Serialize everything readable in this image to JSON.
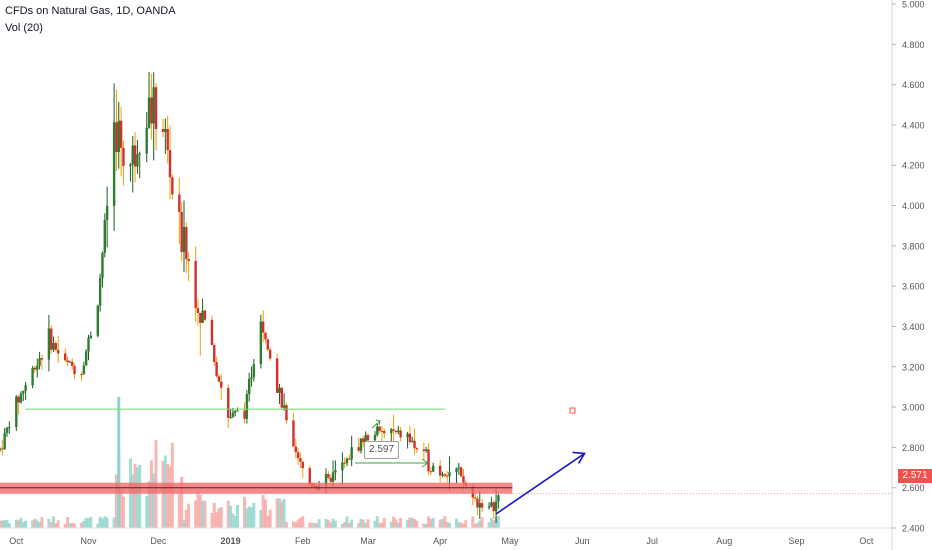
{
  "title": "CFDs on Natural Gas, 1D, OANDA",
  "volume_label": "Vol (20)",
  "current_price_label": "2.571",
  "annotation_label": "2.597",
  "colors": {
    "up": "#26a69a",
    "down": "#ef5350",
    "wick_up": "#1b5e20",
    "wick_down": "#f0a000",
    "support_zone": "#f06b6b",
    "resistance_line": "#66dd66",
    "arrow": "#1a1acc",
    "axis_text": "#555555"
  },
  "chart_data": {
    "type": "candlestick",
    "symbol": "CFDs on Natural Gas",
    "interval": "1D",
    "source": "OANDA",
    "ylim": [
      2.3,
      5.0
    ],
    "y_ticks": [
      "5.000",
      "4.800",
      "4.600",
      "4.400",
      "4.200",
      "4.000",
      "3.800",
      "3.600",
      "3.400",
      "3.200",
      "3.000",
      "2.800",
      "2.600",
      "2.400"
    ],
    "x_ticks": [
      "Oct",
      "Nov",
      "Dec",
      "2019",
      "Feb",
      "Mar",
      "Apr",
      "May",
      "Jun",
      "Jul",
      "Aug",
      "Sep",
      "Oct"
    ],
    "x_range": [
      "2018-09-24",
      "2019-10-12"
    ],
    "last_price": 2.571,
    "horizontal_lines": [
      {
        "price": 2.99,
        "from": "2018-10-05",
        "to": "2019-04-03",
        "kind": "resistance"
      },
      {
        "price": 2.571,
        "from": "2018-09-24",
        "to": "2019-10-12",
        "kind": "last-price"
      }
    ],
    "support_zone": {
      "low": 2.57,
      "high": 2.625,
      "from": "2018-09-24",
      "to": "2019-05-02"
    },
    "projection_arrow": {
      "from": [
        "2019-04-25",
        2.47
      ],
      "to": [
        "2019-06-02",
        2.77
      ]
    },
    "candles_close": [
      {
        "date": "2018-09-24",
        "close": 2.79
      },
      {
        "date": "2018-10-01",
        "close": 3.02
      },
      {
        "date": "2018-10-08",
        "close": 3.18
      },
      {
        "date": "2018-10-15",
        "close": 3.34
      },
      {
        "date": "2018-10-22",
        "close": 3.22
      },
      {
        "date": "2018-10-29",
        "close": 3.18
      },
      {
        "date": "2018-11-05",
        "close": 3.52
      },
      {
        "date": "2018-11-12",
        "close": 4.4
      },
      {
        "date": "2018-11-19",
        "close": 4.2
      },
      {
        "date": "2018-11-26",
        "close": 4.5
      },
      {
        "date": "2018-12-03",
        "close": 4.4
      },
      {
        "date": "2018-12-10",
        "close": 3.85
      },
      {
        "date": "2018-12-17",
        "close": 3.6
      },
      {
        "date": "2018-12-24",
        "close": 3.3
      },
      {
        "date": "2018-12-31",
        "close": 2.95
      },
      {
        "date": "2019-01-07",
        "close": 2.98
      },
      {
        "date": "2019-01-14",
        "close": 3.45
      },
      {
        "date": "2019-01-21",
        "close": 3.1
      },
      {
        "date": "2019-01-28",
        "close": 2.78
      },
      {
        "date": "2019-02-04",
        "close": 2.62
      },
      {
        "date": "2019-02-11",
        "close": 2.62
      },
      {
        "date": "2019-02-18",
        "close": 2.7
      },
      {
        "date": "2019-02-25",
        "close": 2.82
      },
      {
        "date": "2019-03-04",
        "close": 2.87
      },
      {
        "date": "2019-03-11",
        "close": 2.87
      },
      {
        "date": "2019-03-18",
        "close": 2.85
      },
      {
        "date": "2019-03-25",
        "close": 2.75
      },
      {
        "date": "2019-04-01",
        "close": 2.68
      },
      {
        "date": "2019-04-08",
        "close": 2.68
      },
      {
        "date": "2019-04-15",
        "close": 2.55
      },
      {
        "date": "2019-04-22",
        "close": 2.49
      },
      {
        "date": "2019-04-29",
        "close": 2.57
      }
    ]
  }
}
